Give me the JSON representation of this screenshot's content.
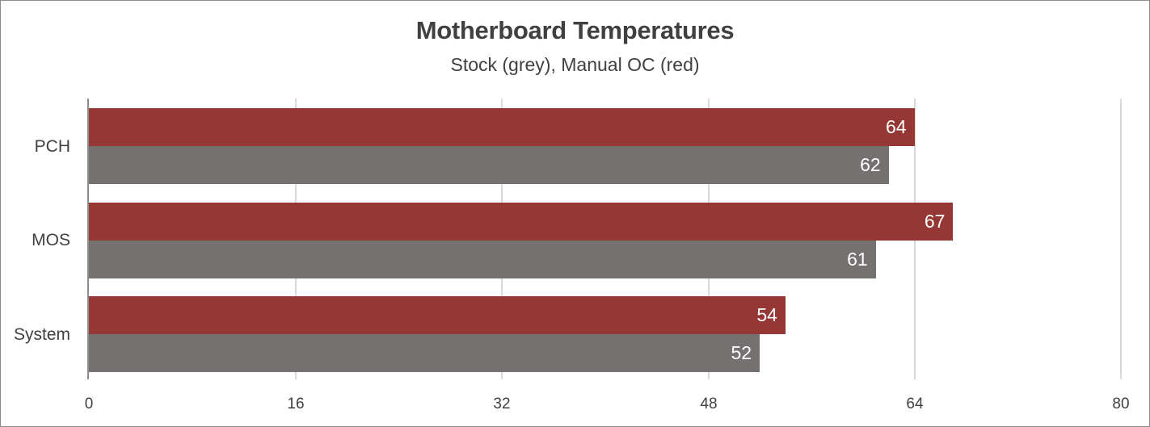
{
  "chart_data": {
    "type": "bar",
    "orientation": "horizontal",
    "title": "Motherboard Temperatures",
    "subtitle": "Stock (grey), Manual OC (red)",
    "categories": [
      "PCH",
      "MOS",
      "System"
    ],
    "series": [
      {
        "name": "Manual OC",
        "color": "#953735",
        "values": [
          64,
          67,
          54
        ]
      },
      {
        "name": "Stock",
        "color": "#767171",
        "values": [
          62,
          61,
          52
        ]
      }
    ],
    "xlabel": "",
    "ylabel": "",
    "xlim": [
      0,
      80
    ],
    "xticks": [
      0,
      16,
      32,
      48,
      64,
      80
    ],
    "grid": true,
    "legend": "none (described in subtitle)",
    "data_labels": true
  },
  "labels": {
    "title": "Motherboard Temperatures",
    "subtitle": "Stock (grey), Manual OC (red)",
    "categories": [
      "PCH",
      "MOS",
      "System"
    ],
    "ticks": [
      "0",
      "16",
      "32",
      "48",
      "64",
      "80"
    ],
    "oc_values": [
      "64",
      "67",
      "54"
    ],
    "stock_values": [
      "62",
      "61",
      "52"
    ]
  },
  "colors": {
    "oc": "#953735",
    "stock": "#767171",
    "grid": "#d9d9d9",
    "text": "#404040"
  }
}
